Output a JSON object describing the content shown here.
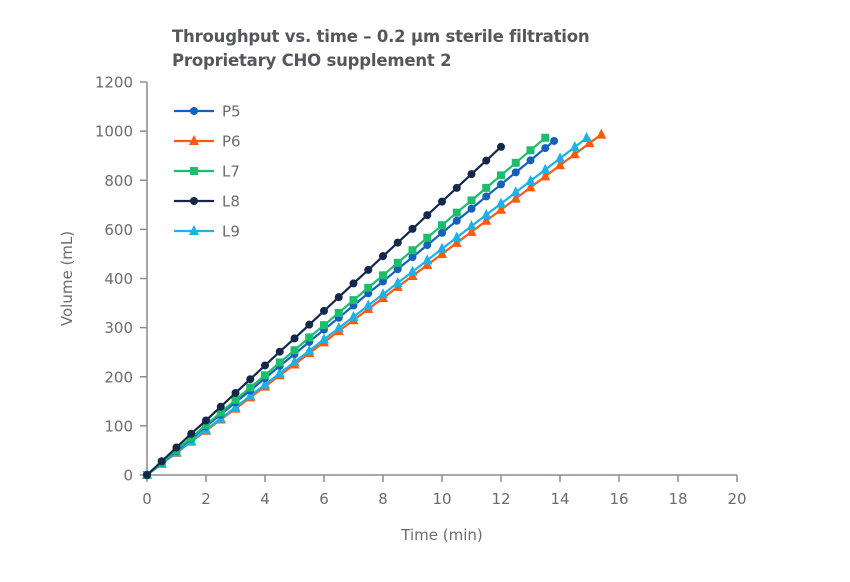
{
  "chart_data": {
    "type": "line",
    "title": "Throughput vs. time – 0.2 µm sterile filtration",
    "subtitle": "Proprietary CHO supplement 2",
    "xlabel": "Time (min)",
    "ylabel": "Volume (mL)",
    "xlim": [
      0,
      20
    ],
    "xticks": [
      0,
      2,
      4,
      6,
      8,
      10,
      12,
      14,
      16,
      18,
      20
    ],
    "yticks": [
      0,
      100,
      200,
      300,
      400,
      600,
      800,
      1000,
      1200
    ],
    "grid": false,
    "legend_position": "top-left",
    "series": [
      {
        "name": "P5",
        "color": "#1560bd",
        "marker": "circle",
        "x": [
          0,
          0.5,
          1,
          1.5,
          2,
          2.5,
          3,
          3.5,
          4,
          4.5,
          5,
          5.5,
          6,
          6.5,
          7,
          7.5,
          8,
          8.5,
          9,
          9.5,
          10,
          10.5,
          11,
          11.5,
          12,
          12.5,
          13,
          13.5,
          13.8
        ],
        "y": [
          0,
          25,
          49,
          74,
          99,
          123,
          148,
          172,
          197,
          222,
          246,
          271,
          296,
          320,
          345,
          370,
          394,
          438,
          487,
          536,
          586,
          635,
          684,
          734,
          783,
          832,
          881,
          931,
          960
        ]
      },
      {
        "name": "P6",
        "color": "#ff5a0f",
        "marker": "triangle",
        "x": [
          0,
          0.5,
          1,
          1.5,
          2,
          2.5,
          3,
          3.5,
          4,
          4.5,
          5,
          5.5,
          6,
          6.5,
          7,
          7.5,
          8,
          8.5,
          9,
          9.5,
          10,
          10.5,
          11,
          11.5,
          12,
          12.5,
          13,
          13.5,
          14,
          14.5,
          15,
          15.4
        ],
        "y": [
          0,
          23,
          45,
          68,
          90,
          113,
          135,
          158,
          180,
          203,
          225,
          248,
          270,
          293,
          315,
          338,
          360,
          383,
          410,
          455,
          500,
          545,
          590,
          635,
          680,
          725,
          771,
          816,
          861,
          906,
          951,
          986
        ]
      },
      {
        "name": "L7",
        "color": "#1dbd6e",
        "marker": "square",
        "x": [
          0,
          0.5,
          1,
          1.5,
          2,
          2.5,
          3,
          3.5,
          4,
          4.5,
          5,
          5.5,
          6,
          6.5,
          7,
          7.5,
          8,
          8.5,
          9,
          9.5,
          10,
          10.5,
          11,
          11.5,
          12,
          12.5,
          13,
          13.5
        ],
        "y": [
          0,
          25,
          51,
          76,
          102,
          127,
          153,
          178,
          203,
          229,
          254,
          280,
          305,
          330,
          356,
          381,
          413,
          464,
          515,
          566,
          617,
          668,
          718,
          769,
          820,
          871,
          922,
          973
        ]
      },
      {
        "name": "L8",
        "color": "#14284b",
        "marker": "circle",
        "x": [
          0,
          0.5,
          1,
          1.5,
          2,
          2.5,
          3,
          3.5,
          4,
          4.5,
          5,
          5.5,
          6,
          6.5,
          7,
          7.5,
          8,
          8.5,
          9,
          9.5,
          10,
          10.5,
          11,
          11.5,
          12
        ],
        "y": [
          0,
          28,
          56,
          84,
          111,
          139,
          167,
          195,
          223,
          251,
          278,
          306,
          334,
          362,
          390,
          435,
          491,
          546,
          602,
          658,
          713,
          769,
          825,
          880,
          936
        ]
      },
      {
        "name": "L9",
        "color": "#1ab2e8",
        "marker": "triangle",
        "x": [
          0,
          0.5,
          1,
          1.5,
          2,
          2.5,
          3,
          3.5,
          4,
          4.5,
          5,
          5.5,
          6,
          6.5,
          7,
          7.5,
          8,
          8.5,
          9,
          9.5,
          10,
          10.5,
          11,
          11.5,
          12,
          12.5,
          13,
          13.5,
          14,
          14.5,
          14.9
        ],
        "y": [
          0,
          23,
          46,
          69,
          92,
          115,
          138,
          161,
          184,
          207,
          230,
          253,
          276,
          299,
          322,
          345,
          368,
          391,
          428,
          474,
          521,
          567,
          613,
          659,
          705,
          751,
          797,
          843,
          889,
          935,
          972
        ]
      }
    ]
  }
}
